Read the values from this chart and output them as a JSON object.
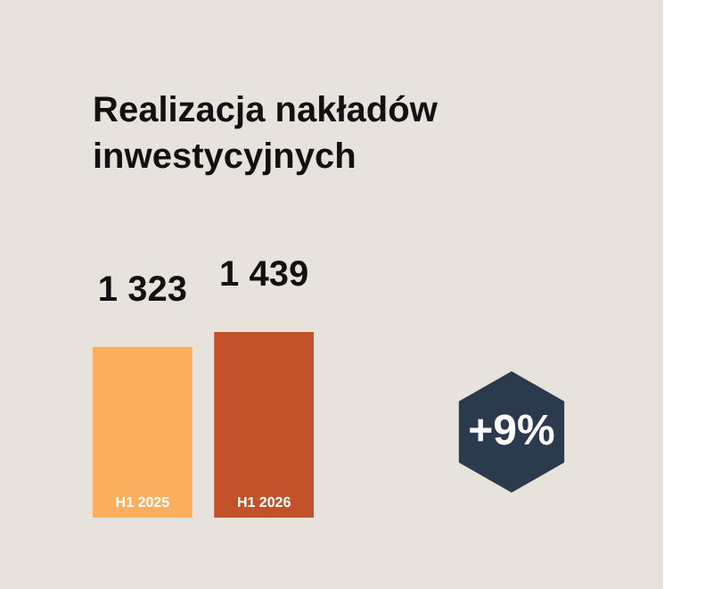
{
  "chart_data": {
    "type": "bar",
    "title": "Realizacja nakładów inwestycyjnych",
    "categories": [
      "H1 2025",
      "H1 2026"
    ],
    "values": [
      1323,
      1439
    ],
    "colors": [
      "#fbae5e",
      "#c3512a"
    ],
    "value_labels": [
      "1 323",
      "1 439"
    ],
    "annotations": [
      "+9%"
    ]
  }
}
